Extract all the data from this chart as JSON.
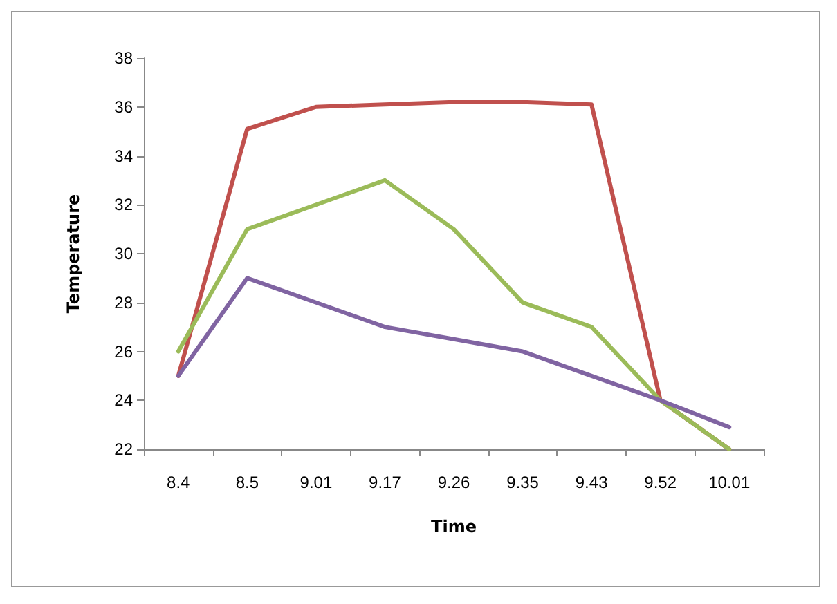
{
  "chart_data": {
    "type": "line",
    "xlabel": "Time",
    "ylabel": "Temperature",
    "categories": [
      "8.4",
      "8.5",
      "9.01",
      "9.17",
      "9.26",
      "9.35",
      "9.43",
      "9.52",
      "10.01"
    ],
    "series": [
      {
        "color": "#c0504d",
        "values": [
          25,
          35.1,
          36,
          36.1,
          36.2,
          36.2,
          36.1,
          24,
          22
        ]
      },
      {
        "color": "#9bbb59",
        "values": [
          26,
          31,
          32,
          33,
          31,
          28,
          27,
          24,
          22
        ]
      },
      {
        "color": "#8064a2",
        "values": [
          25,
          29,
          28,
          27,
          26.5,
          26,
          25,
          24,
          22.9
        ]
      }
    ],
    "ylim": [
      22,
      38
    ],
    "yticks": [
      22,
      24,
      26,
      28,
      30,
      32,
      34,
      36,
      38
    ],
    "grid": false,
    "marker": "none",
    "line_style": "solid"
  }
}
